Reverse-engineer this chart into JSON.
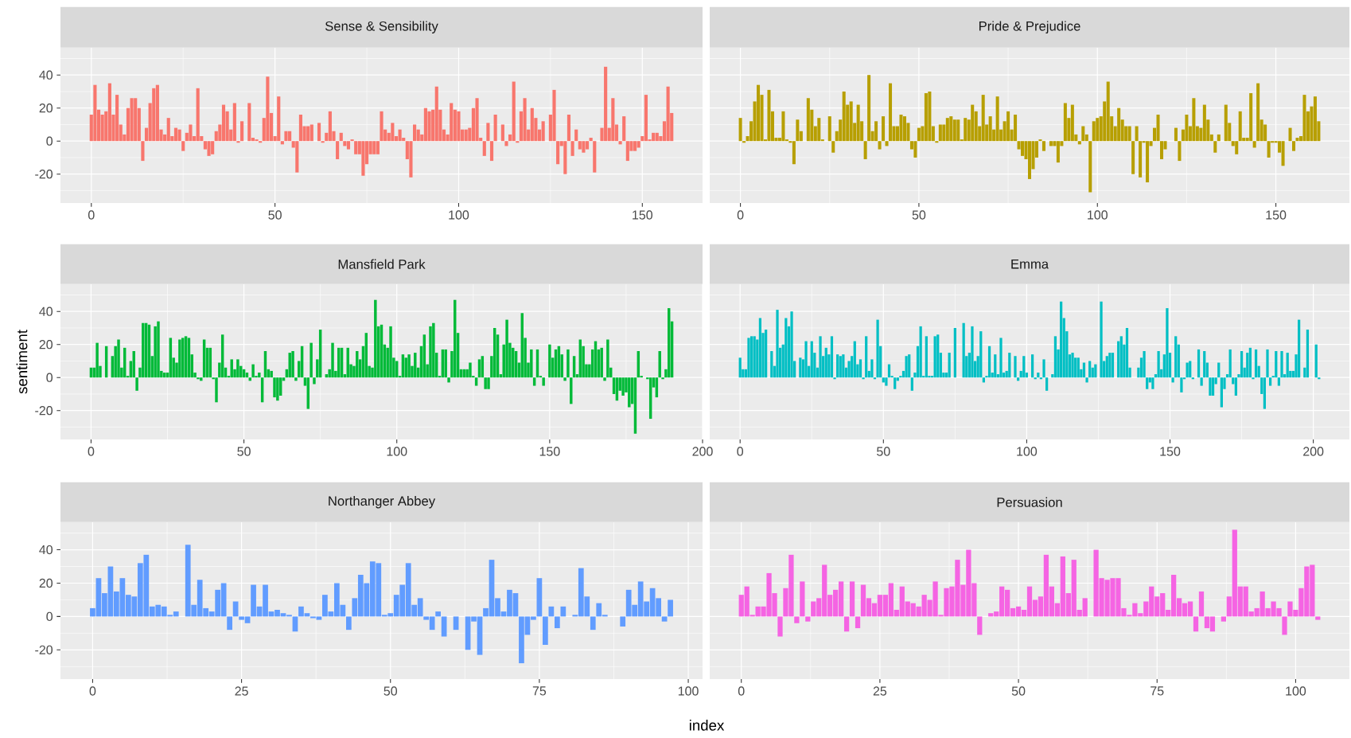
{
  "chart_data": [
    {
      "type": "bar",
      "title": "Sense & Sensibility",
      "color": "#F8766D",
      "xlim": [
        -8.4,
        166.4
      ],
      "xticks": [
        0,
        50,
        100,
        150
      ],
      "ylim": [
        -37.5,
        56.5
      ],
      "yticks": [
        -20,
        0,
        20,
        40
      ],
      "grid": true,
      "x": [
        0,
        1,
        2,
        3,
        4,
        5,
        6,
        7,
        8,
        9,
        10,
        11,
        12,
        13,
        14,
        15,
        16,
        17,
        18,
        19,
        20,
        21,
        22,
        23,
        24,
        25,
        26,
        27,
        28,
        29,
        30,
        31,
        32,
        33,
        34,
        35,
        36,
        37,
        38,
        39,
        40,
        41,
        42,
        43,
        44,
        45,
        46,
        47,
        48,
        49,
        50,
        51,
        52,
        53,
        54,
        55,
        56,
        57,
        58,
        59,
        60,
        61,
        62,
        63,
        64,
        65,
        66,
        67,
        68,
        69,
        70,
        71,
        72,
        73,
        74,
        75,
        76,
        77,
        78,
        79,
        80,
        81,
        82,
        83,
        84,
        85,
        86,
        87,
        88,
        89,
        90,
        91,
        92,
        93,
        94,
        95,
        96,
        97,
        98,
        99,
        100,
        101,
        102,
        103,
        104,
        105,
        106,
        107,
        108,
        109,
        110,
        111,
        112,
        113,
        114,
        115,
        116,
        117,
        118,
        119,
        120,
        121,
        122,
        123,
        124,
        125,
        126,
        127,
        128,
        129,
        130,
        131,
        132,
        133,
        134,
        135,
        136,
        137,
        138,
        139,
        140,
        141,
        142,
        143,
        144,
        145,
        146,
        147,
        148,
        149,
        150,
        151,
        152,
        153,
        154,
        155,
        156,
        157,
        158
      ],
      "values": [
        16,
        34,
        19,
        16,
        18,
        35,
        16,
        28,
        10,
        4,
        20,
        26,
        26,
        20,
        -12,
        8,
        23,
        32,
        34,
        7,
        4,
        14,
        3,
        8,
        7,
        -6,
        5,
        10,
        3,
        32,
        3,
        -5,
        -9,
        -8,
        6,
        10,
        22,
        18,
        7,
        23,
        -1,
        12,
        0,
        23,
        2,
        1,
        -1,
        14,
        39,
        17,
        3,
        27,
        -2,
        6,
        6,
        -4,
        -19,
        16,
        9,
        9,
        10,
        0,
        11,
        -1,
        5,
        18,
        6,
        -11,
        5,
        -3,
        -5,
        1,
        -8,
        -8,
        -21,
        -14,
        -8,
        -8,
        -8,
        18,
        7,
        5,
        11,
        3,
        7,
        2,
        -11,
        -22,
        10,
        7,
        4,
        20,
        18,
        19,
        33,
        19,
        7,
        4,
        23,
        19,
        18,
        7,
        7,
        8,
        20,
        26,
        2,
        -9,
        11,
        -12,
        16,
        0,
        10,
        -3,
        4,
        36,
        -1,
        18,
        26,
        7,
        20,
        14,
        7,
        12,
        0,
        16,
        31,
        -14,
        -3,
        -20,
        16,
        -9,
        7,
        -5,
        -7,
        -5,
        2,
        -19,
        0,
        8,
        45,
        8,
        26,
        10,
        -2,
        15,
        -12,
        -6,
        -6,
        -4,
        3,
        28,
        1,
        5,
        5,
        3,
        12,
        33,
        17
      ]
    },
    {
      "type": "bar",
      "title": "Pride & Prejudice",
      "color": "#B79F00",
      "xlim": [
        -8.6,
        170.6
      ],
      "xticks": [
        0,
        50,
        100,
        150
      ],
      "ylim": [
        -37.5,
        56.5
      ],
      "yticks": [
        -20,
        0,
        20,
        40
      ],
      "grid": true,
      "tick_labels": "x",
      "x": [
        0,
        1,
        2,
        3,
        4,
        5,
        6,
        7,
        8,
        9,
        10,
        11,
        12,
        13,
        14,
        15,
        16,
        17,
        18,
        19,
        20,
        21,
        22,
        23,
        24,
        25,
        26,
        27,
        28,
        29,
        30,
        31,
        32,
        33,
        34,
        35,
        36,
        37,
        38,
        39,
        40,
        41,
        42,
        43,
        44,
        45,
        46,
        47,
        48,
        49,
        50,
        51,
        52,
        53,
        54,
        55,
        56,
        57,
        58,
        59,
        60,
        61,
        62,
        63,
        64,
        65,
        66,
        67,
        68,
        69,
        70,
        71,
        72,
        73,
        74,
        75,
        76,
        77,
        78,
        79,
        80,
        81,
        82,
        83,
        84,
        85,
        86,
        87,
        88,
        89,
        90,
        91,
        92,
        93,
        94,
        95,
        96,
        97,
        98,
        99,
        100,
        101,
        102,
        103,
        104,
        105,
        106,
        107,
        108,
        109,
        110,
        111,
        112,
        113,
        114,
        115,
        116,
        117,
        118,
        119,
        120,
        121,
        122,
        123,
        124,
        125,
        126,
        127,
        128,
        129,
        130,
        131,
        132,
        133,
        134,
        135,
        136,
        137,
        138,
        139,
        140,
        141,
        142,
        143,
        144,
        145,
        146,
        147,
        148,
        149,
        150,
        151,
        152,
        153,
        154,
        155,
        156,
        157,
        158,
        159,
        160,
        161,
        162
      ],
      "values": [
        14,
        -1,
        3,
        12,
        24,
        34,
        28,
        1,
        31,
        18,
        2,
        2,
        18,
        1,
        -1,
        -14,
        13,
        6,
        0,
        26,
        19,
        9,
        14,
        1,
        0,
        15,
        -7,
        6,
        13,
        30,
        22,
        24,
        11,
        22,
        12,
        -11,
        40,
        6,
        12,
        -5,
        15,
        -3,
        35,
        9,
        9,
        16,
        15,
        11,
        -5,
        -10,
        8,
        9,
        29,
        30,
        9,
        -1,
        10,
        10,
        14,
        15,
        13,
        13,
        1,
        14,
        13,
        22,
        18,
        9,
        28,
        10,
        15,
        7,
        27,
        7,
        12,
        18,
        7,
        16,
        -5,
        -9,
        -11,
        -23,
        -17,
        -10,
        1,
        -6,
        0,
        -3,
        -3,
        -13,
        -3,
        23,
        14,
        22,
        4,
        -2,
        9,
        4,
        -31,
        12,
        14,
        15,
        24,
        36,
        15,
        9,
        20,
        13,
        9,
        9,
        -20,
        9,
        -22,
        -1,
        -25,
        -3,
        8,
        16,
        -11,
        -5,
        0,
        0,
        8,
        -12,
        7,
        16,
        9,
        26,
        9,
        8,
        22,
        13,
        4,
        -7,
        4,
        0,
        22,
        11,
        -3,
        -8,
        18,
        2,
        2,
        29,
        -4,
        35,
        13,
        10,
        -10,
        -1,
        -1,
        -7,
        -15,
        0,
        8,
        -6,
        2,
        3,
        28,
        18,
        21,
        27,
        12
      ]
    },
    {
      "type": "bar",
      "title": "Mansfield Park",
      "ylabel": "sentiment",
      "color": "#00BA38",
      "xlim": [
        -10,
        200
      ],
      "xticks": [
        0,
        50,
        100,
        150,
        200
      ],
      "ylim": [
        -37.5,
        56.5
      ],
      "yticks": [
        -20,
        0,
        20,
        40
      ],
      "grid": true,
      "x": [
        0,
        1,
        2,
        3,
        4,
        5,
        6,
        7,
        8,
        9,
        10,
        11,
        12,
        13,
        14,
        15,
        16,
        17,
        18,
        19,
        20,
        21,
        22,
        23,
        24,
        25,
        26,
        27,
        28,
        29,
        30,
        31,
        32,
        33,
        34,
        35,
        36,
        37,
        38,
        39,
        40,
        41,
        42,
        43,
        44,
        45,
        46,
        47,
        48,
        49,
        50,
        51,
        52,
        53,
        54,
        55,
        56,
        57,
        58,
        59,
        60,
        61,
        62,
        63,
        64,
        65,
        66,
        67,
        68,
        69,
        70,
        71,
        72,
        73,
        74,
        75,
        76,
        77,
        78,
        79,
        80,
        81,
        82,
        83,
        84,
        85,
        86,
        87,
        88,
        89,
        90,
        91,
        92,
        93,
        94,
        95,
        96,
        97,
        98,
        99,
        100,
        101,
        102,
        103,
        104,
        105,
        106,
        107,
        108,
        109,
        110,
        111,
        112,
        113,
        114,
        115,
        116,
        117,
        118,
        119,
        120,
        121,
        122,
        123,
        124,
        125,
        126,
        127,
        128,
        129,
        130,
        131,
        132,
        133,
        134,
        135,
        136,
        137,
        138,
        139,
        140,
        141,
        142,
        143,
        144,
        145,
        146,
        147,
        148,
        149,
        150,
        151,
        152,
        153,
        154,
        155,
        156,
        157,
        158,
        159,
        160,
        161,
        162,
        163,
        164,
        165,
        166,
        167,
        168,
        169,
        170,
        171,
        172,
        173,
        174,
        175,
        176,
        177,
        178,
        179,
        180,
        181,
        182,
        183,
        184,
        185,
        186,
        187,
        188,
        189,
        190
      ],
      "values": [
        6,
        6,
        21,
        7,
        0,
        19,
        0,
        13,
        19,
        23,
        6,
        18,
        1,
        10,
        16,
        -8,
        6,
        33,
        33,
        32,
        13,
        31,
        34,
        4,
        3,
        3,
        24,
        12,
        9,
        23,
        24,
        25,
        24,
        14,
        3,
        -1,
        -2,
        23,
        18,
        18,
        -1,
        -15,
        9,
        26,
        6,
        1,
        11,
        5,
        11,
        7,
        5,
        3,
        -2,
        8,
        1,
        3,
        -15,
        16,
        5,
        4,
        -12,
        -14,
        -11,
        -2,
        5,
        15,
        16,
        -2,
        10,
        19,
        -5,
        -19,
        21,
        -4,
        11,
        29,
        0,
        2,
        5,
        21,
        4,
        18,
        18,
        2,
        18,
        8,
        7,
        16,
        11,
        19,
        27,
        7,
        6,
        47,
        31,
        32,
        20,
        18,
        31,
        12,
        10,
        1,
        14,
        12,
        14,
        7,
        15,
        6,
        19,
        26,
        8,
        31,
        33,
        15,
        1,
        17,
        17,
        -3,
        16,
        47,
        27,
        5,
        5,
        5,
        9,
        1,
        -5,
        11,
        13,
        -7,
        -7,
        13,
        30,
        26,
        2,
        20,
        35,
        21,
        18,
        16,
        9,
        39,
        24,
        9,
        17,
        -5,
        17,
        1,
        -5,
        0,
        20,
        12,
        17,
        19,
        14,
        -2,
        17,
        -16,
        13,
        2,
        23,
        19,
        8,
        8,
        17,
        22,
        17,
        18,
        -2,
        23,
        6,
        -10,
        -14,
        -8,
        -11,
        -9,
        -18,
        -16,
        -34,
        16,
        1,
        0,
        -1,
        -25,
        -6,
        -12,
        16,
        -1,
        5,
        42,
        34
      ]
    },
    {
      "type": "bar",
      "title": "Emma",
      "color": "#00BFC4",
      "xlim": [
        -10.6,
        212.6
      ],
      "xticks": [
        0,
        50,
        100,
        150,
        200
      ],
      "ylim": [
        -37.5,
        56.5
      ],
      "yticks": [
        -20,
        0,
        20,
        40
      ],
      "grid": true,
      "tick_labels": "x",
      "x": [
        0,
        1,
        2,
        3,
        4,
        5,
        6,
        7,
        8,
        9,
        10,
        11,
        12,
        13,
        14,
        15,
        16,
        17,
        18,
        19,
        20,
        21,
        22,
        23,
        24,
        25,
        26,
        27,
        28,
        29,
        30,
        31,
        32,
        33,
        34,
        35,
        36,
        37,
        38,
        39,
        40,
        41,
        42,
        43,
        44,
        45,
        46,
        47,
        48,
        49,
        50,
        51,
        52,
        53,
        54,
        55,
        56,
        57,
        58,
        59,
        60,
        61,
        62,
        63,
        64,
        65,
        66,
        67,
        68,
        69,
        70,
        71,
        72,
        73,
        74,
        75,
        76,
        77,
        78,
        79,
        80,
        81,
        82,
        83,
        84,
        85,
        86,
        87,
        88,
        89,
        90,
        91,
        92,
        93,
        94,
        95,
        96,
        97,
        98,
        99,
        100,
        101,
        102,
        103,
        104,
        105,
        106,
        107,
        108,
        109,
        110,
        111,
        112,
        113,
        114,
        115,
        116,
        117,
        118,
        119,
        120,
        121,
        122,
        123,
        124,
        125,
        126,
        127,
        128,
        129,
        130,
        131,
        132,
        133,
        134,
        135,
        136,
        137,
        138,
        139,
        140,
        141,
        142,
        143,
        144,
        145,
        146,
        147,
        148,
        149,
        150,
        151,
        152,
        153,
        154,
        155,
        156,
        157,
        158,
        159,
        160,
        161,
        162,
        163,
        164,
        165,
        166,
        167,
        168,
        169,
        170,
        171,
        172,
        173,
        174,
        175,
        176,
        177,
        178,
        179,
        180,
        181,
        182,
        183,
        184,
        185,
        186,
        187,
        188,
        189,
        190,
        191,
        192,
        193,
        194,
        195,
        196,
        197,
        198,
        199,
        200,
        201,
        202
      ],
      "values": [
        12,
        5,
        5,
        24,
        25,
        25,
        23,
        36,
        27,
        29,
        0,
        16,
        7,
        41,
        18,
        20,
        36,
        31,
        40,
        10,
        0,
        12,
        11,
        22,
        7,
        22,
        15,
        6,
        25,
        13,
        18,
        14,
        25,
        -1,
        14,
        13,
        14,
        6,
        10,
        13,
        22,
        8,
        11,
        -1,
        25,
        4,
        11,
        -1,
        35,
        19,
        -3,
        -5,
        8,
        1,
        -7,
        -2,
        1,
        4,
        13,
        14,
        -8,
        3,
        19,
        31,
        1,
        25,
        1,
        1,
        25,
        26,
        15,
        3,
        3,
        15,
        0,
        30,
        0,
        0,
        33,
        13,
        15,
        31,
        10,
        13,
        28,
        -3,
        1,
        19,
        3,
        14,
        2,
        24,
        3,
        4,
        15,
        0,
        13,
        -2,
        4,
        13,
        3,
        0,
        14,
        -1,
        3,
        -1,
        11,
        -8,
        0,
        2,
        25,
        17,
        46,
        36,
        28,
        14,
        15,
        12,
        12,
        5,
        9,
        -3,
        10,
        6,
        8,
        0,
        46,
        10,
        13,
        15,
        15,
        0,
        22,
        25,
        20,
        30,
        6,
        0,
        0,
        6,
        12,
        16,
        -7,
        -3,
        -7,
        2,
        16,
        5,
        14,
        42,
        15,
        -3,
        25,
        20,
        -9,
        -1,
        9,
        10,
        -1,
        0,
        17,
        -5,
        16,
        9,
        -11,
        -11,
        -4,
        9,
        -18,
        -7,
        2,
        17,
        -4,
        -11,
        2,
        16,
        6,
        15,
        18,
        -1,
        17,
        7,
        -10,
        -19,
        17,
        -5,
        1,
        16,
        -5,
        16,
        2,
        15,
        4,
        4,
        14,
        35,
        0,
        6,
        29,
        0,
        0,
        20,
        -1
      ]
    },
    {
      "type": "bar",
      "title": "Northanger Abbey",
      "xlabel": "index",
      "color": "#619CFF",
      "xlim": [
        -5.4,
        102.4
      ],
      "xticks": [
        0,
        25,
        50,
        75,
        100
      ],
      "ylim": [
        -37.5,
        56.5
      ],
      "yticks": [
        -20,
        0,
        20,
        40
      ],
      "grid": true,
      "x": [
        0,
        1,
        2,
        3,
        4,
        5,
        6,
        7,
        8,
        9,
        10,
        11,
        12,
        13,
        14,
        15,
        16,
        17,
        18,
        19,
        20,
        21,
        22,
        23,
        24,
        25,
        26,
        27,
        28,
        29,
        30,
        31,
        32,
        33,
        34,
        35,
        36,
        37,
        38,
        39,
        40,
        41,
        42,
        43,
        44,
        45,
        46,
        47,
        48,
        49,
        50,
        51,
        52,
        53,
        54,
        55,
        56,
        57,
        58,
        59,
        60,
        61,
        62,
        63,
        64,
        65,
        66,
        67,
        68,
        69,
        70,
        71,
        72,
        73,
        74,
        75,
        76,
        77,
        78,
        79,
        80,
        81,
        82,
        83,
        84,
        85,
        86,
        87,
        88,
        89,
        90,
        91,
        92,
        93,
        94,
        95,
        96,
        97
      ],
      "values": [
        5,
        23,
        14,
        30,
        15,
        23,
        13,
        12,
        32,
        37,
        6,
        7,
        6,
        1,
        3,
        0,
        43,
        7,
        22,
        5,
        3,
        16,
        20,
        -8,
        9,
        -2,
        -4,
        19,
        6,
        19,
        3,
        4,
        2,
        1,
        -9,
        6,
        2,
        -1,
        -2,
        13,
        3,
        20,
        7,
        -8,
        11,
        25,
        20,
        33,
        32,
        1,
        2,
        13,
        19,
        32,
        7,
        11,
        -2,
        -8,
        3,
        -12,
        0,
        -8,
        0,
        -20,
        -3,
        -23,
        5,
        34,
        11,
        3,
        16,
        14,
        -28,
        -11,
        -2,
        23,
        -17,
        6,
        -7,
        6,
        0,
        1,
        29,
        12,
        -8,
        8,
        1,
        0,
        0,
        -6,
        16,
        7,
        21,
        9,
        17,
        11,
        -3,
        10
      ]
    },
    {
      "type": "bar",
      "title": "Persuasion",
      "color": "#F564E3",
      "xlim": [
        -5.7,
        109.7
      ],
      "xticks": [
        0,
        25,
        50,
        75,
        100
      ],
      "ylim": [
        -37.5,
        56.5
      ],
      "yticks": [
        -20,
        0,
        20,
        40
      ],
      "grid": true,
      "tick_labels": "x",
      "x": [
        0,
        1,
        2,
        3,
        4,
        5,
        6,
        7,
        8,
        9,
        10,
        11,
        12,
        13,
        14,
        15,
        16,
        17,
        18,
        19,
        20,
        21,
        22,
        23,
        24,
        25,
        26,
        27,
        28,
        29,
        30,
        31,
        32,
        33,
        34,
        35,
        36,
        37,
        38,
        39,
        40,
        41,
        42,
        43,
        44,
        45,
        46,
        47,
        48,
        49,
        50,
        51,
        52,
        53,
        54,
        55,
        56,
        57,
        58,
        59,
        60,
        61,
        62,
        63,
        64,
        65,
        66,
        67,
        68,
        69,
        70,
        71,
        72,
        73,
        74,
        75,
        76,
        77,
        78,
        79,
        80,
        81,
        82,
        83,
        84,
        85,
        86,
        87,
        88,
        89,
        90,
        91,
        92,
        93,
        94,
        95,
        96,
        97,
        98,
        99,
        100,
        101,
        102,
        103,
        104
      ],
      "values": [
        13,
        18,
        1,
        6,
        6,
        26,
        14,
        -12,
        17,
        37,
        -4,
        21,
        -3,
        9,
        11,
        31,
        13,
        16,
        21,
        -9,
        21,
        -7,
        19,
        11,
        8,
        13,
        13,
        20,
        4,
        18,
        9,
        8,
        6,
        13,
        10,
        21,
        1,
        17,
        18,
        34,
        19,
        40,
        20,
        -11,
        0,
        2,
        3,
        18,
        16,
        5,
        6,
        4,
        18,
        10,
        12,
        37,
        18,
        8,
        36,
        14,
        34,
        4,
        11,
        0,
        40,
        23,
        22,
        23,
        23,
        5,
        1,
        8,
        2,
        9,
        18,
        12,
        14,
        4,
        25,
        11,
        8,
        9,
        -9,
        15,
        -7,
        -9,
        0,
        -3,
        12,
        52,
        18,
        18,
        3,
        5,
        15,
        5,
        9,
        5,
        -11,
        9,
        4,
        17,
        30,
        31,
        -2
      ]
    }
  ]
}
